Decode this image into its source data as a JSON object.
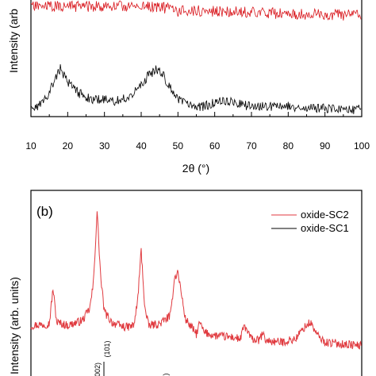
{
  "chart_data": [
    {
      "type": "line",
      "panel_label": "",
      "xlabel": "2θ (°)",
      "ylabel": "Intensity (arb",
      "xlim": [
        10,
        100
      ],
      "xticks": [
        "10",
        "20",
        "30",
        "40",
        "50",
        "60",
        "70",
        "80",
        "90",
        "100"
      ],
      "series": [
        {
          "color": "#d8151b",
          "x": [
            10,
            18,
            24,
            28,
            32,
            35,
            40,
            44,
            46,
            48,
            50,
            55,
            60,
            65,
            70,
            75,
            80,
            85,
            90,
            95,
            100
          ],
          "y": [
            1.0,
            1.0,
            1.0,
            1.0,
            1.0,
            1.0,
            1.0,
            1.0,
            0.95,
            0.9,
            0.82,
            0.84,
            0.82,
            0.82,
            0.78,
            0.75,
            0.72,
            0.7,
            0.7,
            0.68,
            0.66
          ]
        },
        {
          "color": "#000000",
          "x": [
            10,
            12,
            14,
            16,
            18,
            20,
            22,
            24,
            26,
            28,
            30,
            32,
            34,
            36,
            38,
            40,
            42,
            44,
            46,
            48,
            50,
            52,
            54,
            56,
            58,
            60,
            62,
            64,
            66,
            68,
            70,
            72,
            74,
            76,
            78,
            80,
            82,
            84,
            86,
            88,
            90,
            92,
            94,
            96,
            98,
            100
          ],
          "y": [
            0.06,
            0.08,
            0.14,
            0.28,
            0.42,
            0.3,
            0.22,
            0.18,
            0.15,
            0.14,
            0.14,
            0.12,
            0.13,
            0.16,
            0.2,
            0.26,
            0.36,
            0.41,
            0.36,
            0.24,
            0.14,
            0.1,
            0.07,
            0.07,
            0.09,
            0.11,
            0.12,
            0.12,
            0.1,
            0.09,
            0.08,
            0.08,
            0.08,
            0.07,
            0.07,
            0.08,
            0.07,
            0.06,
            0.06,
            0.06,
            0.06,
            0.05,
            0.05,
            0.05,
            0.05,
            0.05
          ]
        }
      ]
    },
    {
      "type": "line",
      "panel_label": "(b)",
      "xlabel": "",
      "ylabel": "Intensity (arb. units)",
      "xlim": [
        10,
        100
      ],
      "legend_position": "top-right",
      "series": [
        {
          "name": "oxide-SC2",
          "color": "#e03a3f",
          "x": [
            10,
            15,
            16,
            17,
            20,
            24,
            26,
            27,
            28,
            29,
            30,
            32,
            34,
            36,
            38,
            39,
            40,
            41,
            42,
            45,
            48,
            49,
            50,
            52,
            55,
            56,
            57,
            60,
            65,
            67,
            68,
            70,
            72,
            73,
            74,
            78,
            80,
            82,
            84,
            86,
            88,
            90,
            95,
            100
          ],
          "y": [
            0.3,
            0.31,
            0.52,
            0.32,
            0.3,
            0.33,
            0.4,
            0.55,
            0.98,
            0.58,
            0.38,
            0.32,
            0.3,
            0.29,
            0.3,
            0.44,
            0.75,
            0.4,
            0.3,
            0.31,
            0.36,
            0.58,
            0.62,
            0.34,
            0.25,
            0.32,
            0.26,
            0.24,
            0.23,
            0.22,
            0.3,
            0.22,
            0.21,
            0.25,
            0.21,
            0.2,
            0.21,
            0.22,
            0.28,
            0.32,
            0.24,
            0.2,
            0.19,
            0.18
          ]
        },
        {
          "name": "oxide-SC1",
          "color": "#000000",
          "x": [],
          "y": []
        }
      ]
    }
  ],
  "peak_labels": [
    "(101)",
    "002)",
    ")"
  ]
}
